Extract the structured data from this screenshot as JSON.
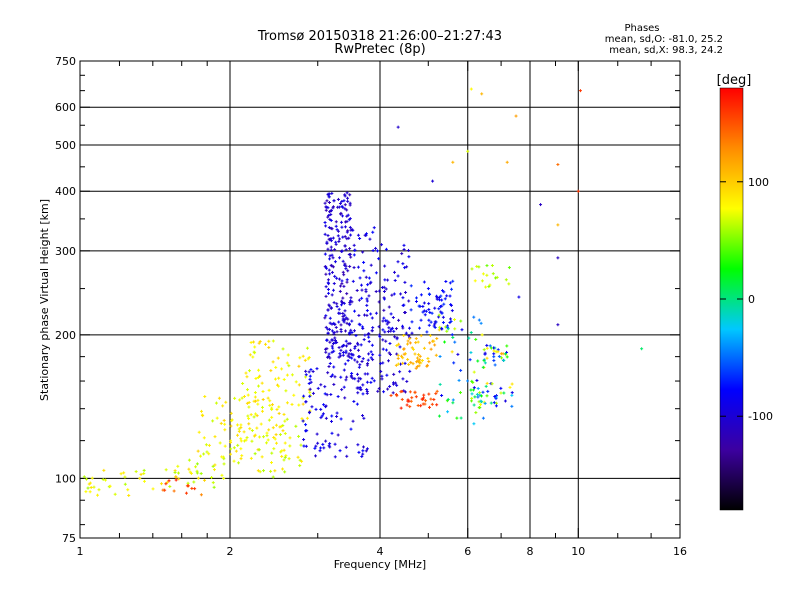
{
  "chart_data": {
    "type": "scatter",
    "title": "Tromsø 20150318 21:26:00–21:27:43",
    "subtitle": "RwPretec (8p)",
    "xlabel": "Frequency [MHz]",
    "ylabel": "Stationary phase Virtual Height [km]",
    "x_scale": "log",
    "y_scale": "log",
    "xlim": [
      1,
      16
    ],
    "ylim": [
      75,
      750
    ],
    "x_ticks": [
      1,
      2,
      4,
      6,
      8,
      10,
      16
    ],
    "x_minor_ticks": [
      1.2,
      1.4,
      1.6,
      1.8,
      3,
      5,
      7,
      9,
      12,
      14
    ],
    "y_ticks": [
      75,
      100,
      200,
      300,
      400,
      500,
      600,
      750
    ],
    "y_minor_ticks": [
      80,
      90,
      120,
      140,
      160,
      180,
      250,
      350,
      450,
      550,
      650,
      700
    ],
    "x_gridlines": [
      2,
      4,
      6,
      8,
      10
    ],
    "y_gridlines": [
      100,
      200,
      300,
      400,
      500,
      600
    ],
    "grid": true,
    "stats": {
      "heading": "Phases",
      "line_o": "mean, sd,O: -81.0, 25.2",
      "line_x": "mean, sd,X:  98.3, 24.2"
    },
    "colorbar": {
      "label": "[deg]",
      "range": [
        -180,
        180
      ],
      "ticks": [
        100,
        0,
        -100
      ],
      "colormap": "rainbow",
      "colors": [
        "#000000",
        "#3c00a0",
        "#0000ff",
        "#00c8ff",
        "#00ff00",
        "#ffff00",
        "#ff8c00",
        "#ff0000"
      ]
    },
    "clusters": [
      {
        "f": [
          1.02,
          1.35
        ],
        "h": [
          92,
          104
        ],
        "phase": [
          55,
          95
        ],
        "n": 30
      },
      {
        "f": [
          1.4,
          1.95
        ],
        "h": [
          95,
          110
        ],
        "phase": [
          55,
          100
        ],
        "n": 35
      },
      {
        "f": [
          1.45,
          1.8
        ],
        "h": [
          92,
          100
        ],
        "phase": [
          130,
          170
        ],
        "n": 12
      },
      {
        "f": [
          1.7,
          2.5
        ],
        "h": [
          110,
          150
        ],
        "phase": [
          65,
          100
        ],
        "n": 70
      },
      {
        "f": [
          2.0,
          2.8
        ],
        "h": [
          100,
          130
        ],
        "phase": [
          60,
          95
        ],
        "n": 60
      },
      {
        "f": [
          2.1,
          2.9
        ],
        "h": [
          130,
          195
        ],
        "phase": [
          65,
          100
        ],
        "n": 90
      },
      {
        "f": [
          2.8,
          3.8
        ],
        "h": [
          110,
          170
        ],
        "phase": [
          -110,
          -75
        ],
        "n": 100
      },
      {
        "f": [
          3.1,
          3.5
        ],
        "h": [
          170,
          400
        ],
        "phase": [
          -120,
          -85
        ],
        "n": 260
      },
      {
        "f": [
          3.5,
          3.9
        ],
        "h": [
          150,
          340
        ],
        "phase": [
          -110,
          -75
        ],
        "n": 110
      },
      {
        "f": [
          3.9,
          4.6
        ],
        "h": [
          150,
          310
        ],
        "phase": [
          -115,
          -80
        ],
        "n": 110
      },
      {
        "f": [
          4.3,
          5.2
        ],
        "h": [
          170,
          200
        ],
        "phase": [
          90,
          125
        ],
        "n": 55
      },
      {
        "f": [
          4.2,
          5.3
        ],
        "h": [
          140,
          155
        ],
        "phase": [
          140,
          170
        ],
        "n": 35
      },
      {
        "f": [
          4.6,
          5.6
        ],
        "h": [
          200,
          260
        ],
        "phase": [
          -95,
          -65
        ],
        "n": 70
      },
      {
        "f": [
          5.2,
          6.6
        ],
        "h": [
          130,
          220
        ],
        "phase": [
          -100,
          95
        ],
        "n": 65
      },
      {
        "f": [
          6.1,
          7.4
        ],
        "h": [
          140,
          160
        ],
        "phase": [
          -95,
          90
        ],
        "n": 35
      },
      {
        "f": [
          6.4,
          7.3
        ],
        "h": [
          170,
          190
        ],
        "phase": [
          -95,
          130
        ],
        "n": 30
      },
      {
        "f": [
          6.0,
          7.3
        ],
        "h": [
          250,
          280
        ],
        "phase": [
          40,
          80
        ],
        "n": 18
      }
    ],
    "points": [
      {
        "f": 4.35,
        "h": 545,
        "phase": -105
      },
      {
        "f": 6.1,
        "h": 655,
        "phase": 80
      },
      {
        "f": 6.4,
        "h": 640,
        "phase": 110
      },
      {
        "f": 7.5,
        "h": 575,
        "phase": 120
      },
      {
        "f": 7.2,
        "h": 460,
        "phase": 115
      },
      {
        "f": 9.1,
        "h": 455,
        "phase": 140
      },
      {
        "f": 10.1,
        "h": 650,
        "phase": 160
      },
      {
        "f": 5.6,
        "h": 460,
        "phase": 110
      },
      {
        "f": 6.0,
        "h": 485,
        "phase": 70
      },
      {
        "f": 9.1,
        "h": 340,
        "phase": 110
      },
      {
        "f": 8.4,
        "h": 375,
        "phase": -110
      },
      {
        "f": 9.1,
        "h": 290,
        "phase": -110
      },
      {
        "f": 9.1,
        "h": 210,
        "phase": -110
      },
      {
        "f": 7.6,
        "h": 240,
        "phase": -90
      },
      {
        "f": 13.4,
        "h": 187,
        "phase": 5
      },
      {
        "f": 10.0,
        "h": 400,
        "phase": 160
      },
      {
        "f": 5.1,
        "h": 420,
        "phase": -100
      }
    ]
  }
}
